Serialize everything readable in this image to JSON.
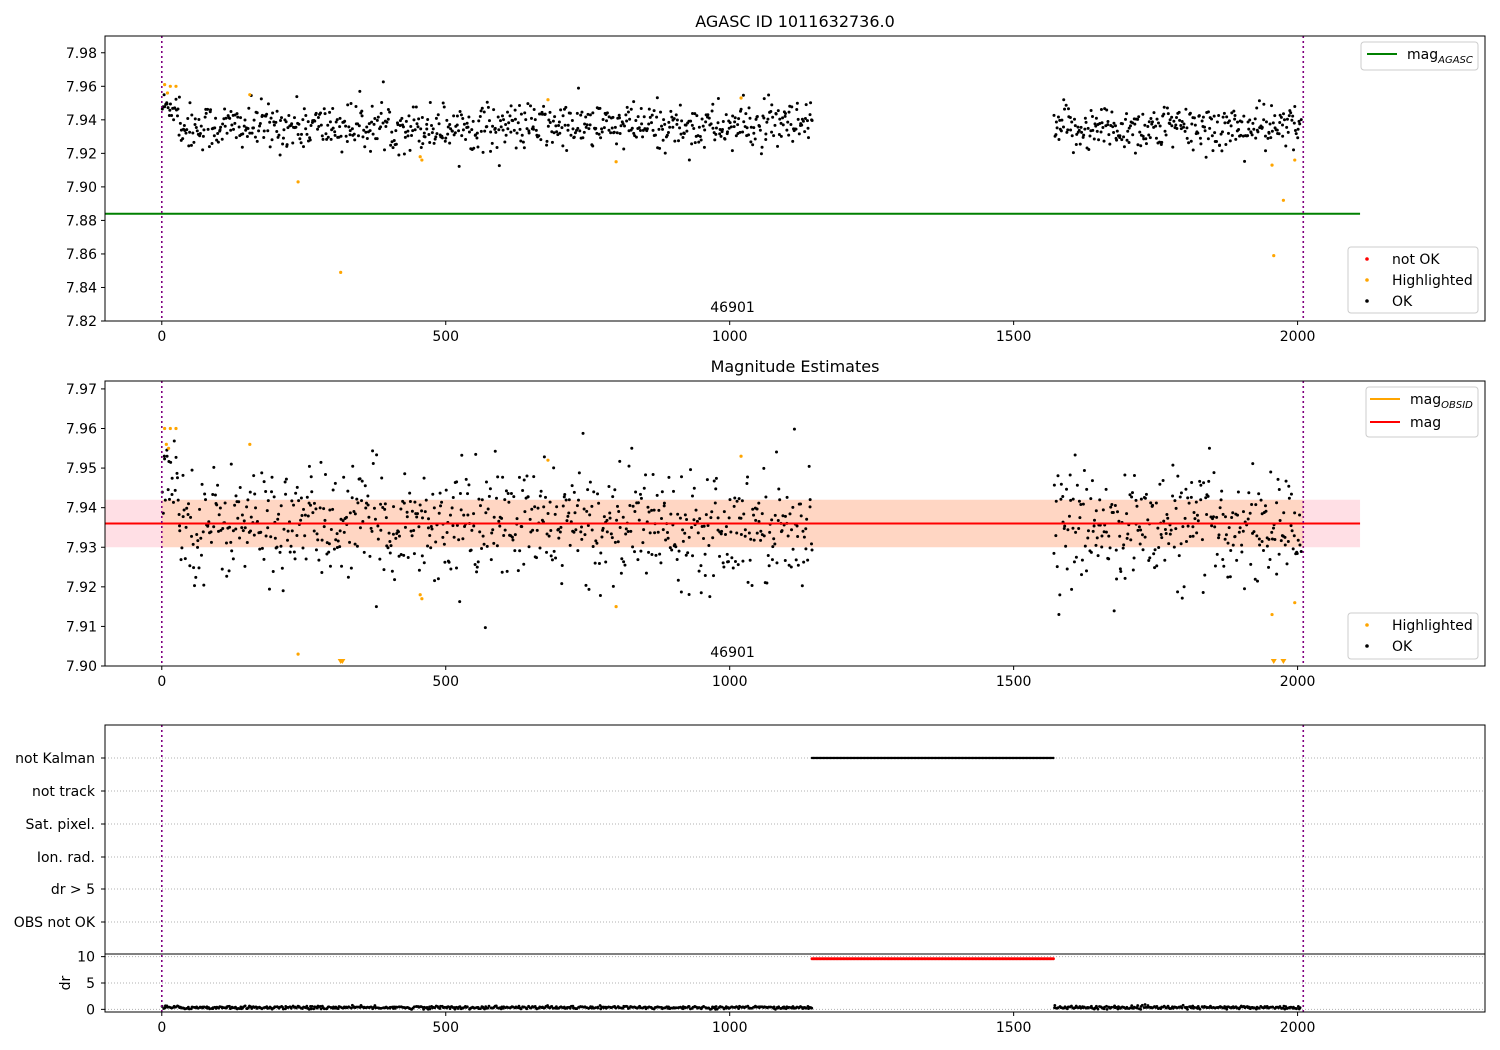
{
  "chart_data": [
    {
      "type": "scatter",
      "title": "AGASC ID 1011632736.0",
      "xlim": [
        -100,
        2330
      ],
      "ylim": [
        7.82,
        7.99
      ],
      "x_ticks": [
        0,
        500,
        1000,
        1500,
        2000
      ],
      "y_ticks": [
        7.82,
        7.84,
        7.86,
        7.88,
        7.9,
        7.92,
        7.94,
        7.96,
        7.98
      ],
      "obsid_label": "46901",
      "obsid_boundaries": [
        0,
        2010
      ],
      "mag_agasc": 7.884,
      "ok_segments": [
        {
          "x_start": 0,
          "x_end": 30,
          "mean": 7.948,
          "spread": 0.005
        },
        {
          "x_start": 30,
          "x_end": 1145,
          "mean": 7.936,
          "spread": 0.007
        },
        {
          "x_start": 1570,
          "x_end": 2005,
          "mean": 7.935,
          "spread": 0.007
        }
      ],
      "highlighted_points": [
        {
          "x": 5,
          "y": 7.961
        },
        {
          "x": 10,
          "y": 7.956
        },
        {
          "x": 15,
          "y": 7.96
        },
        {
          "x": 25,
          "y": 7.96
        },
        {
          "x": 155,
          "y": 7.955
        },
        {
          "x": 240,
          "y": 7.903
        },
        {
          "x": 315,
          "y": 7.849
        },
        {
          "x": 455,
          "y": 7.918
        },
        {
          "x": 458,
          "y": 7.916
        },
        {
          "x": 680,
          "y": 7.952
        },
        {
          "x": 800,
          "y": 7.915
        },
        {
          "x": 1020,
          "y": 7.953
        },
        {
          "x": 1955,
          "y": 7.913
        },
        {
          "x": 1958,
          "y": 7.859
        },
        {
          "x": 1975,
          "y": 7.892
        },
        {
          "x": 1995,
          "y": 7.916
        }
      ],
      "legend_top": [
        {
          "label": "mag",
          "sub": "AGASC",
          "color": "#008000"
        }
      ],
      "legend_bottom": [
        {
          "label": "not OK",
          "color": "#ff0000"
        },
        {
          "label": "Highlighted",
          "color": "#ffa500"
        },
        {
          "label": "OK",
          "color": "#000000"
        }
      ]
    },
    {
      "type": "scatter",
      "title": "Magnitude Estimates",
      "xlim": [
        -100,
        2330
      ],
      "ylim": [
        7.9,
        7.972
      ],
      "x_ticks": [
        0,
        500,
        1000,
        1500,
        2000
      ],
      "y_ticks": [
        7.9,
        7.91,
        7.92,
        7.93,
        7.94,
        7.95,
        7.96,
        7.97
      ],
      "obsid_label": "46901",
      "obsid_boundaries": [
        0,
        2010
      ],
      "mag_obsid": 7.936,
      "mag": 7.936,
      "mag_band": [
        7.93,
        7.942
      ],
      "mag_band_extent": [
        -100,
        2110
      ],
      "ok_segments": [
        {
          "x_start": 0,
          "x_end": 30,
          "mean": 7.948,
          "spread": 0.005
        },
        {
          "x_start": 30,
          "x_end": 1145,
          "mean": 7.936,
          "spread": 0.007
        },
        {
          "x_start": 1570,
          "x_end": 2005,
          "mean": 7.935,
          "spread": 0.007
        }
      ],
      "highlighted_points": [
        {
          "x": 5,
          "y": 7.96
        },
        {
          "x": 8,
          "y": 7.956
        },
        {
          "x": 12,
          "y": 7.955
        },
        {
          "x": 15,
          "y": 7.96
        },
        {
          "x": 25,
          "y": 7.96
        },
        {
          "x": 155,
          "y": 7.956
        },
        {
          "x": 240,
          "y": 7.903
        },
        {
          "x": 455,
          "y": 7.918
        },
        {
          "x": 458,
          "y": 7.917
        },
        {
          "x": 680,
          "y": 7.952
        },
        {
          "x": 800,
          "y": 7.915
        },
        {
          "x": 1020,
          "y": 7.953
        },
        {
          "x": 1955,
          "y": 7.913
        },
        {
          "x": 1995,
          "y": 7.916
        }
      ],
      "highlighted_offscale_x": [
        315,
        318,
        1958,
        1975
      ],
      "legend_top": [
        {
          "label": "mag",
          "sub": "OBSID",
          "color": "#ffa500"
        },
        {
          "label": "mag",
          "sub": "",
          "color": "#ff0000"
        }
      ],
      "legend_bottom": [
        {
          "label": "Highlighted",
          "color": "#ffa500"
        },
        {
          "label": "OK",
          "color": "#000000"
        }
      ]
    },
    {
      "type": "scatter",
      "title": "",
      "xlim": [
        -100,
        2330
      ],
      "x_ticks": [
        0,
        500,
        1000,
        1500,
        2000
      ],
      "flag_rows": [
        "not Kalman",
        "not track",
        "Sat. pixel.",
        "Ion. rad.",
        "dr > 5",
        "OBS not OK"
      ],
      "flag_spans": [
        {
          "row": "not Kalman",
          "x_start": 1145,
          "x_end": 1570
        }
      ],
      "obsid_boundaries": [
        0,
        2010
      ],
      "dr_ylabel": "dr",
      "dr_ylim": [
        -0.5,
        10.5
      ],
      "dr_y_ticks": [
        0,
        5,
        10
      ],
      "dr_segments": [
        {
          "x_start": 0,
          "x_end": 1145,
          "mean": 0.35,
          "spread": 0.25
        },
        {
          "x_start": 1570,
          "x_end": 2005,
          "mean": 0.35,
          "spread": 0.25
        }
      ],
      "dr_bad_span": {
        "x_start": 1145,
        "x_end": 1570,
        "value": 9.6
      }
    }
  ]
}
